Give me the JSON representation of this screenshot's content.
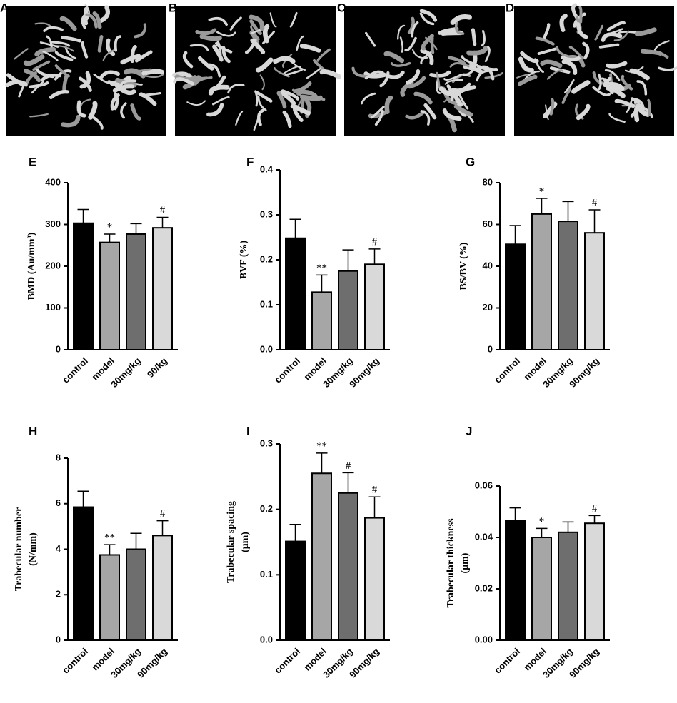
{
  "images": [
    {
      "label": "A"
    },
    {
      "label": "B"
    },
    {
      "label": "C"
    },
    {
      "label": "D"
    }
  ],
  "chart_data": [
    {
      "type": "bar",
      "panel": "E",
      "ylabel": [
        "BMD (Au/mm³)"
      ],
      "categories": [
        "control",
        "model",
        "30mg/kg",
        "90/kg"
      ],
      "values": [
        303,
        257,
        277,
        292
      ],
      "errors": [
        33,
        20,
        25,
        25
      ],
      "annotations": [
        null,
        "*",
        null,
        "#"
      ],
      "colors": [
        "#000000",
        "#a6a6a6",
        "#6e6e6e",
        "#d9d9d9"
      ],
      "ylim": [
        0,
        400
      ],
      "yticks": [
        0,
        100,
        200,
        300,
        400
      ]
    },
    {
      "type": "bar",
      "panel": "F",
      "ylabel": [
        "BVF (%)"
      ],
      "categories": [
        "control",
        "model",
        "30mg/kg",
        "90mg/kg"
      ],
      "values": [
        0.248,
        0.128,
        0.175,
        0.19
      ],
      "errors": [
        0.042,
        0.038,
        0.047,
        0.034
      ],
      "annotations": [
        null,
        "**",
        null,
        "#"
      ],
      "colors": [
        "#000000",
        "#a6a6a6",
        "#6e6e6e",
        "#d9d9d9"
      ],
      "ylim": [
        0,
        0.4
      ],
      "yticks": [
        {
          "value": 0,
          "label": "0.0"
        },
        0.1,
        0.2,
        0.3,
        0.4
      ]
    },
    {
      "type": "bar",
      "panel": "G",
      "ylabel": [
        "BS/BV (%)"
      ],
      "categories": [
        "control",
        "model",
        "30mg/kg",
        "90mg/kg"
      ],
      "values": [
        50.5,
        65,
        61.5,
        56
      ],
      "errors": [
        9,
        7.5,
        9.5,
        11
      ],
      "annotations": [
        null,
        "*",
        null,
        "#"
      ],
      "colors": [
        "#000000",
        "#a6a6a6",
        "#6e6e6e",
        "#d9d9d9"
      ],
      "ylim": [
        0,
        80
      ],
      "yticks": [
        0,
        20,
        40,
        60,
        80
      ]
    },
    {
      "type": "bar",
      "panel": "H",
      "ylabel": [
        "Trabecular number",
        "(N/mm)"
      ],
      "categories": [
        "control",
        "model",
        "30mg/kg",
        "90mg/kg"
      ],
      "values": [
        5.85,
        3.75,
        4.0,
        4.6
      ],
      "errors": [
        0.7,
        0.45,
        0.7,
        0.65
      ],
      "annotations": [
        null,
        "**",
        null,
        "#"
      ],
      "colors": [
        "#000000",
        "#a6a6a6",
        "#6e6e6e",
        "#d9d9d9"
      ],
      "ylim": [
        0,
        8
      ],
      "yticks": [
        0,
        2,
        4,
        6,
        8
      ]
    },
    {
      "type": "bar",
      "panel": "I",
      "ylabel": [
        "Trabecular spacing",
        "(μm)"
      ],
      "categories": [
        "control",
        "model",
        "30mg/kg",
        "90mg/kg"
      ],
      "values": [
        0.151,
        0.255,
        0.225,
        0.187
      ],
      "errors": [
        0.026,
        0.031,
        0.031,
        0.032
      ],
      "annotations": [
        null,
        "**",
        "#",
        "#"
      ],
      "colors": [
        "#000000",
        "#a6a6a6",
        "#6e6e6e",
        "#d9d9d9"
      ],
      "ylim": [
        0,
        0.3
      ],
      "yticks": [
        {
          "value": 0,
          "label": "0.0"
        },
        0.1,
        0.2,
        0.3
      ]
    },
    {
      "type": "bar",
      "panel": "J",
      "ylabel": [
        "Trabecular thickness",
        "(μm)"
      ],
      "categories": [
        "control",
        "model",
        "30mg/kg",
        "90mg/kg"
      ],
      "values": [
        0.0465,
        0.04,
        0.042,
        0.0455
      ],
      "errors": [
        0.005,
        0.0035,
        0.004,
        0.003
      ],
      "annotations": [
        null,
        "*",
        null,
        "#"
      ],
      "colors": [
        "#000000",
        "#a6a6a6",
        "#6e6e6e",
        "#d9d9d9"
      ],
      "ylim": [
        0,
        0.06
      ],
      "yticks": [
        {
          "value": 0,
          "label": "0.00"
        },
        0.02,
        0.04,
        0.06
      ]
    }
  ]
}
